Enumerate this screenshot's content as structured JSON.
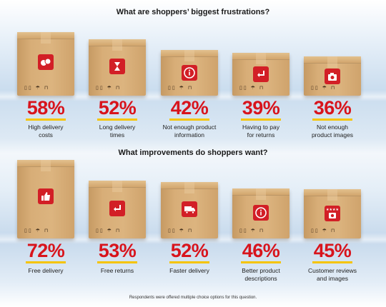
{
  "chart_data": [
    {
      "type": "bar",
      "title": "What are shoppers’ biggest frustrations?",
      "ylim": [
        0,
        100
      ],
      "categories": [
        "High delivery costs",
        "Long delivery times",
        "Not enough product information",
        "Having to pay for returns",
        "Not enough product images"
      ],
      "values": [
        58,
        52,
        42,
        39,
        36
      ],
      "value_labels": [
        "58%",
        "52%",
        "42%",
        "39%",
        "36%"
      ],
      "label_lines": [
        [
          "High delivery",
          "costs"
        ],
        [
          "Long delivery",
          "times"
        ],
        [
          "Not enough product",
          "information"
        ],
        [
          "Having to pay",
          "for returns"
        ],
        [
          "Not enough",
          "product images"
        ]
      ],
      "icons": [
        "coins-icon",
        "hourglass-icon",
        "info-icon",
        "return-arrow-icon",
        "camera-icon"
      ]
    },
    {
      "type": "bar",
      "title": "What improvements do shoppers want?",
      "ylim": [
        0,
        100
      ],
      "categories": [
        "Free delivery",
        "Free returns",
        "Faster delivery",
        "Better product descriptions",
        "Customer reviews and images"
      ],
      "values": [
        72,
        53,
        52,
        46,
        45
      ],
      "value_labels": [
        "72%",
        "53%",
        "52%",
        "46%",
        "45%"
      ],
      "label_lines": [
        [
          "Free delivery"
        ],
        [
          "Free returns"
        ],
        [
          "Faster delivery"
        ],
        [
          "Better product",
          "descriptions"
        ],
        [
          "Customer reviews",
          "and images"
        ]
      ],
      "icons": [
        "thumbs-up-icon",
        "return-arrow-icon",
        "delivery-truck-icon",
        "info-icon",
        "stars-camera-icon"
      ]
    }
  ],
  "footnote": "Respondents were offered multiple choice options for this question.",
  "colors": {
    "value": "#d8141c",
    "underline": "#f5c400",
    "icon_bg": "#d21f26",
    "box": "#d8ae78"
  }
}
